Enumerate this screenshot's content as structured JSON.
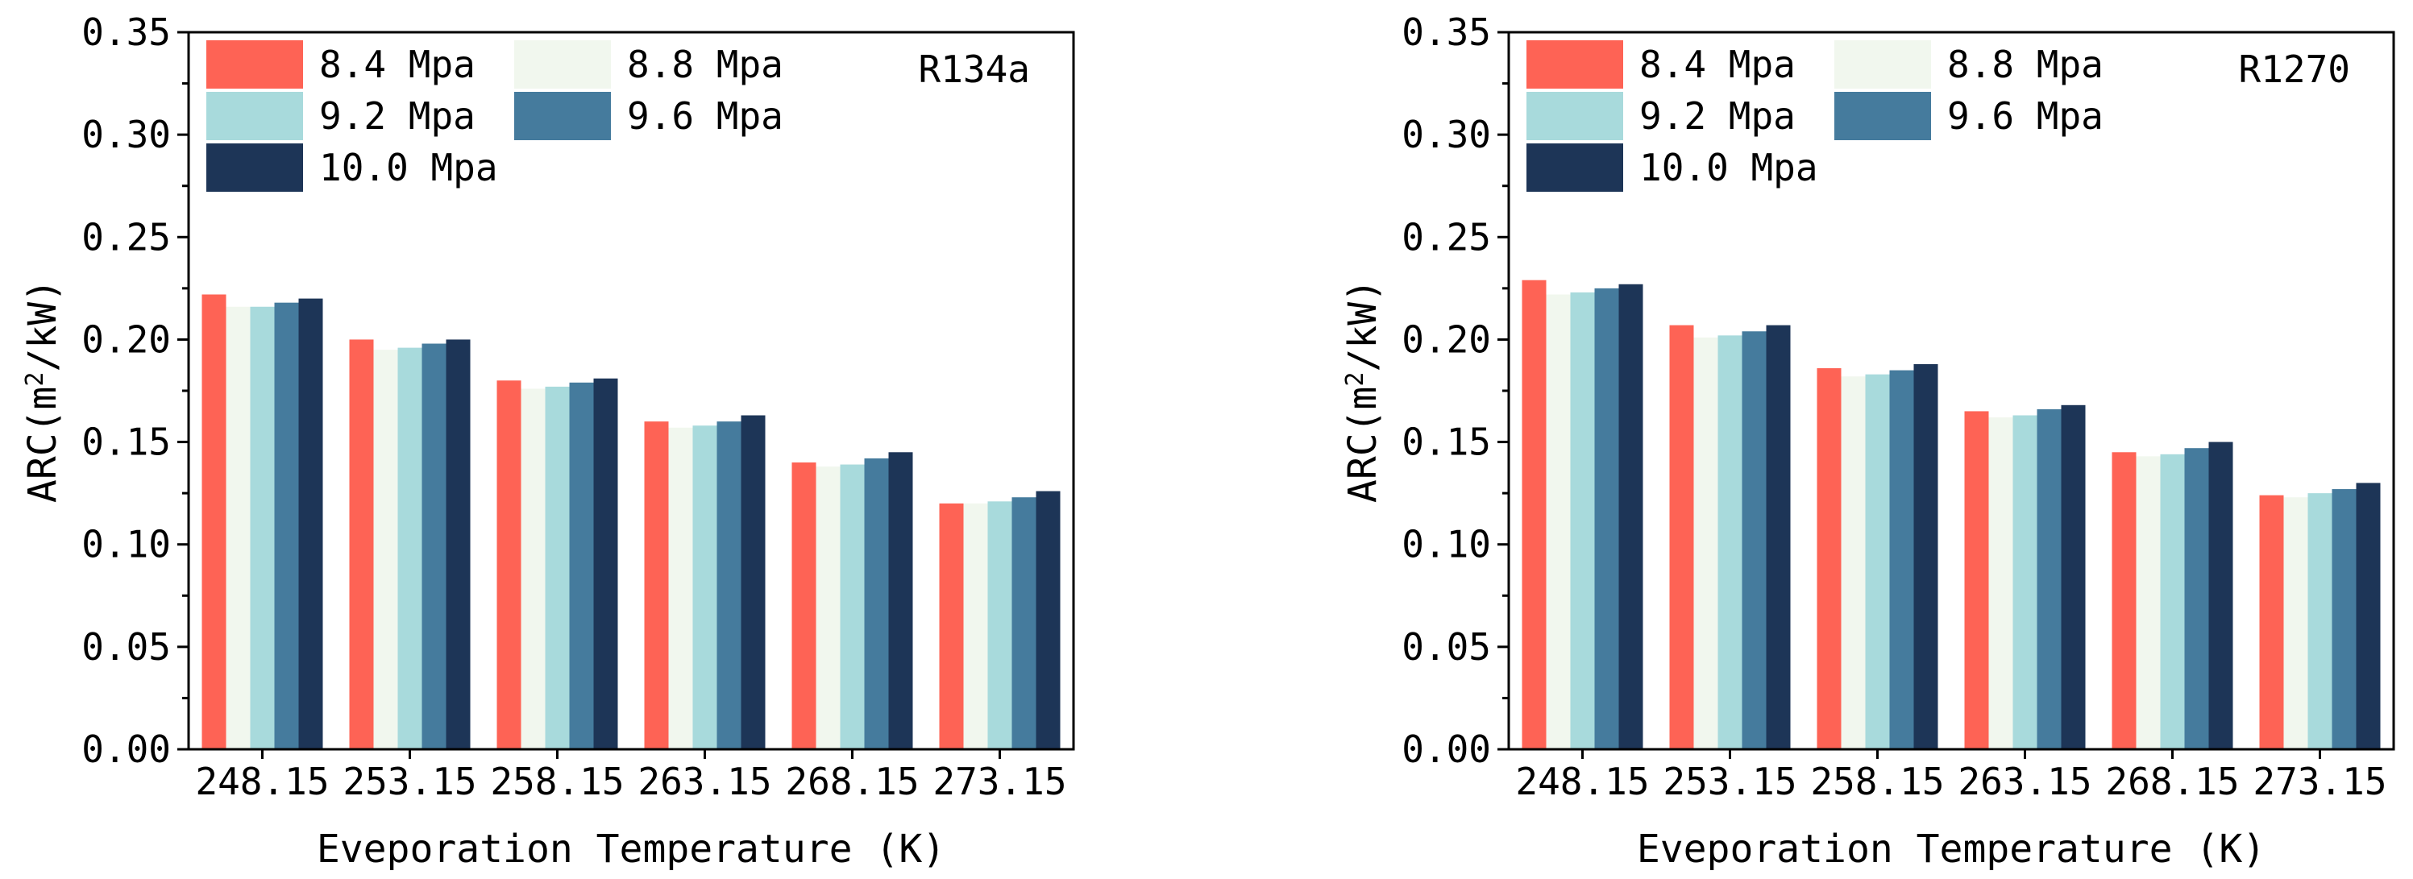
{
  "chart_data": [
    {
      "type": "bar",
      "annotation": "R134a",
      "xlabel": "Eveporation Temperature (K)",
      "ylabel_prefix": "ARC(m",
      "ylabel_sup": "2",
      "ylabel_suffix": "/kW)",
      "ylim": [
        0,
        0.35
      ],
      "yticks": [
        "0.00",
        "0.05",
        "0.10",
        "0.15",
        "0.20",
        "0.25",
        "0.30",
        "0.35"
      ],
      "grid": false,
      "legend_position": "top-left",
      "categories": [
        "248.15",
        "253.15",
        "258.15",
        "263.15",
        "268.15",
        "273.15"
      ],
      "series": [
        {
          "name": "8.4 Mpa",
          "color": "#FE6355",
          "values": [
            0.222,
            0.2,
            0.18,
            0.16,
            0.14,
            0.12
          ]
        },
        {
          "name": "8.8 Mpa",
          "color": "#F1F7EE",
          "values": [
            0.216,
            0.195,
            0.176,
            0.157,
            0.138,
            0.12
          ]
        },
        {
          "name": "9.2 Mpa",
          "color": "#A8DADC",
          "values": [
            0.216,
            0.196,
            0.177,
            0.158,
            0.139,
            0.121
          ]
        },
        {
          "name": "9.6 Mpa",
          "color": "#457B9D",
          "values": [
            0.218,
            0.198,
            0.179,
            0.16,
            0.142,
            0.123
          ]
        },
        {
          "name": "10.0 Mpa",
          "color": "#1D3557",
          "values": [
            0.22,
            0.2,
            0.181,
            0.163,
            0.145,
            0.126
          ]
        }
      ]
    },
    {
      "type": "bar",
      "annotation": "R1270",
      "xlabel": "Eveporation Temperature (K)",
      "ylabel_prefix": "ARC(m",
      "ylabel_sup": "2",
      "ylabel_suffix": "/kW)",
      "ylim": [
        0,
        0.35
      ],
      "yticks": [
        "0.00",
        "0.05",
        "0.10",
        "0.15",
        "0.20",
        "0.25",
        "0.30",
        "0.35"
      ],
      "grid": false,
      "legend_position": "top-left",
      "categories": [
        "248.15",
        "253.15",
        "258.15",
        "263.15",
        "268.15",
        "273.15"
      ],
      "series": [
        {
          "name": "8.4 Mpa",
          "color": "#FE6355",
          "values": [
            0.229,
            0.207,
            0.186,
            0.165,
            0.145,
            0.124
          ]
        },
        {
          "name": "8.8 Mpa",
          "color": "#F1F7EE",
          "values": [
            0.222,
            0.201,
            0.182,
            0.162,
            0.143,
            0.123
          ]
        },
        {
          "name": "9.2 Mpa",
          "color": "#A8DADC",
          "values": [
            0.223,
            0.202,
            0.183,
            0.163,
            0.144,
            0.125
          ]
        },
        {
          "name": "9.6 Mpa",
          "color": "#457B9D",
          "values": [
            0.225,
            0.204,
            0.185,
            0.166,
            0.147,
            0.127
          ]
        },
        {
          "name": "10.0 Mpa",
          "color": "#1D3557",
          "values": [
            0.227,
            0.207,
            0.188,
            0.168,
            0.15,
            0.13
          ]
        }
      ]
    }
  ]
}
